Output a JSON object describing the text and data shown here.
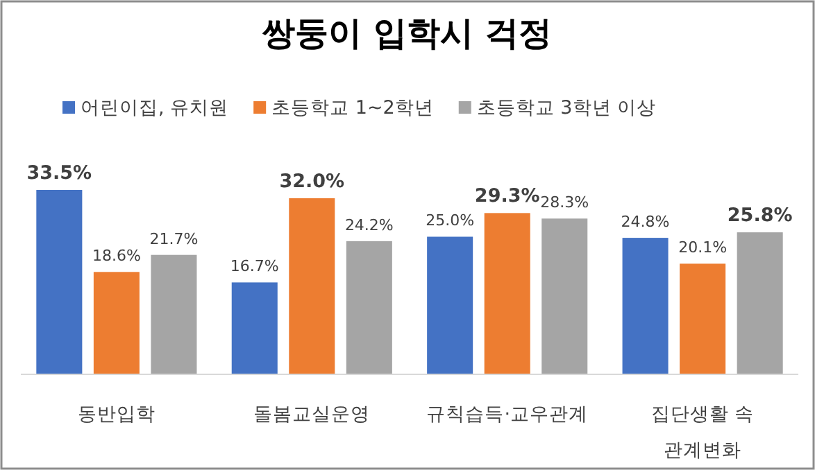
{
  "chart_data": {
    "type": "bar",
    "title": "쌍둥이 입학시 걱정",
    "categories": [
      "동반입학",
      "돌봄교실운영",
      "규칙습득·교우관계",
      "집단생활 속\n관계변화"
    ],
    "series": [
      {
        "name": "어린이집, 유치원",
        "color": "#4472c4",
        "values": [
          33.5,
          16.7,
          25.0,
          24.8
        ],
        "value_labels": [
          "33.5%",
          "16.7%",
          "25.0%",
          "24.8%"
        ]
      },
      {
        "name": "초등학교 1~2학년",
        "color": "#ed7d31",
        "values": [
          18.6,
          32.0,
          29.3,
          20.1
        ],
        "value_labels": [
          "18.6%",
          "32.0%",
          "29.3%",
          "20.1%"
        ]
      },
      {
        "name": "초등학교 3학년 이상",
        "color": "#a5a5a5",
        "values": [
          21.7,
          24.2,
          28.3,
          25.8
        ],
        "value_labels": [
          "21.7%",
          "24.2%",
          "28.3%",
          "25.8%"
        ]
      }
    ],
    "tick_labels": "x",
    "legend": "top"
  }
}
